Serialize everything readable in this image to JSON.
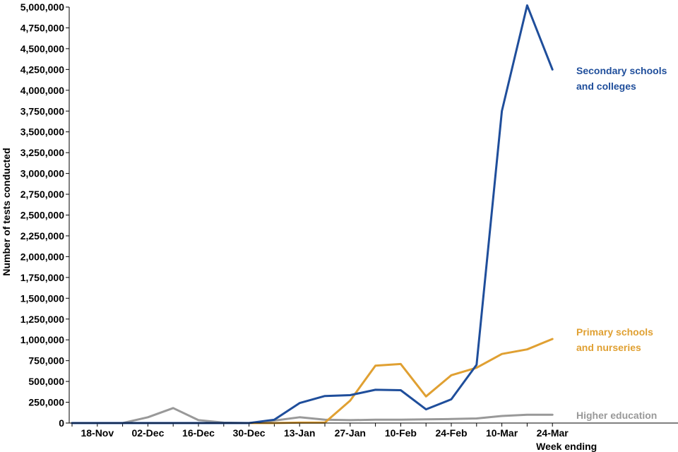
{
  "chart_data": {
    "type": "line",
    "title": "",
    "xlabel": "Week ending",
    "ylabel": "Number of tests conducted",
    "ylim": [
      0,
      5000000
    ],
    "yticks": [
      0,
      250000,
      500000,
      750000,
      1000000,
      1250000,
      1500000,
      1750000,
      2000000,
      2250000,
      2500000,
      2750000,
      3000000,
      3250000,
      3500000,
      3750000,
      4000000,
      4250000,
      4500000,
      4750000,
      5000000
    ],
    "ytick_labels": [
      "0",
      "250,000",
      "500,000",
      "750,000",
      "1,000,000",
      "1,250,000",
      "1,500,000",
      "1,750,000",
      "2,000,000",
      "2,250,000",
      "2,500,000",
      "2,750,000",
      "3,000,000",
      "3,250,000",
      "3,500,000",
      "3,750,000",
      "4,000,000",
      "4,250,000",
      "4,500,000",
      "4,750,000",
      "5,000,000"
    ],
    "x": [
      "11-Nov",
      "18-Nov",
      "25-Nov",
      "02-Dec",
      "09-Dec",
      "16-Dec",
      "23-Dec",
      "30-Dec",
      "06-Jan",
      "13-Jan",
      "20-Jan",
      "27-Jan",
      "03-Feb",
      "10-Feb",
      "17-Feb",
      "24-Feb",
      "03-Mar",
      "10-Mar",
      "17-Mar",
      "24-Mar"
    ],
    "xtick_labels": [
      "18-Nov",
      "02-Dec",
      "16-Dec",
      "30-Dec",
      "13-Jan",
      "27-Jan",
      "10-Feb",
      "24-Feb",
      "10-Mar",
      "24-Mar"
    ],
    "grid": false,
    "series": [
      {
        "name": "Secondary schools and colleges",
        "label_lines": [
          "Secondary schools",
          "and colleges"
        ],
        "color": "#1f4e9b",
        "values": [
          0,
          0,
          0,
          0,
          0,
          0,
          0,
          0,
          40000,
          240000,
          325000,
          335000,
          400000,
          395000,
          165000,
          285000,
          700000,
          3750000,
          5020000,
          4250000
        ]
      },
      {
        "name": "Primary schools and nurseries",
        "label_lines": [
          "Primary schools",
          "and nurseries"
        ],
        "color": "#e0a032",
        "values": [
          0,
          0,
          0,
          0,
          0,
          0,
          0,
          0,
          0,
          5000,
          5000,
          270000,
          690000,
          710000,
          320000,
          575000,
          665000,
          830000,
          885000,
          1010000
        ]
      },
      {
        "name": "Higher education",
        "label_lines": [
          "Higher education"
        ],
        "color": "#999999",
        "values": [
          0,
          0,
          0,
          70000,
          180000,
          35000,
          5000,
          0,
          30000,
          70000,
          40000,
          35000,
          40000,
          40000,
          45000,
          48000,
          55000,
          85000,
          100000,
          100000
        ]
      }
    ]
  }
}
